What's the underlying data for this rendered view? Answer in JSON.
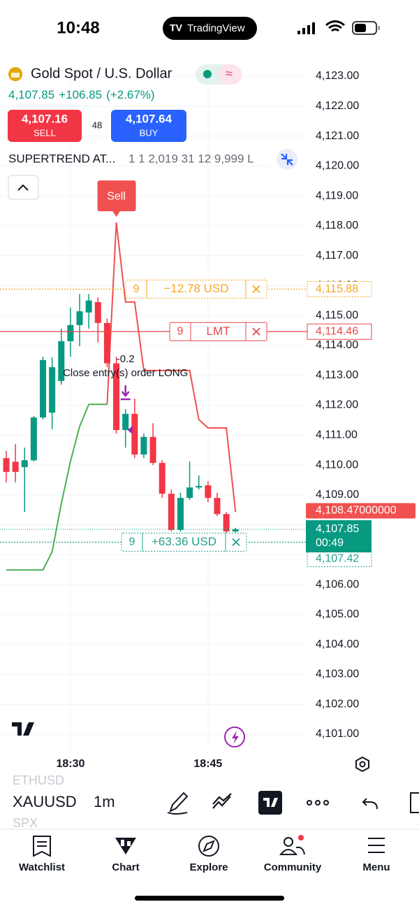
{
  "status_bar": {
    "time": "10:48",
    "app": "TradingView"
  },
  "symbol": {
    "name": "Gold Spot / U.S. Dollar",
    "price": "4,107.85",
    "change": "+106.85",
    "change_pct": "(+2.67%)"
  },
  "trade": {
    "sell_price": "4,107.16",
    "sell": "SELL",
    "spread": 48,
    "buy_price": "4,107.64",
    "buy": "BUY"
  },
  "indicator": {
    "name": "SUPERTREND AT...",
    "params": "1 1 2,019 31 12 9,999 L"
  },
  "chart": {
    "type": "candlestick",
    "categories": [
      null,
      null,
      null,
      null,
      null,
      null,
      null,
      "18:30",
      null,
      null,
      null,
      null,
      null,
      null,
      null,
      null,
      null,
      null,
      null,
      null,
      null,
      null,
      "18:45",
      null,
      null,
      null
    ],
    "open": [
      4110.23,
      4110.11,
      4109.93,
      4110.16,
      4111.59,
      4111.75,
      4112.81,
      4114.14,
      4114.68,
      4115.1,
      4115.45,
      4114.75,
      4113.4,
      4111.17,
      4111.71,
      4110.35,
      4110.94,
      4110.07,
      4109.04,
      4107.83,
      4108.9,
      4109.25,
      4109.32,
      4108.9,
      4108.36,
      4107.78
    ],
    "high": [
      4110.47,
      4110.7,
      4110.58,
      4111.64,
      4113.62,
      4113.6,
      4114.56,
      4115.26,
      4115.72,
      4115.72,
      4115.6,
      4114.9,
      4113.62,
      4111.87,
      4112.22,
      4111.05,
      4111.4,
      4110.16,
      4109.18,
      4109.07,
      4110.12,
      4109.65,
      4109.46,
      4109.07,
      4108.43,
      4107.9
    ],
    "low": [
      4109.42,
      4109.42,
      4108.43,
      4110.12,
      4111.52,
      4111.2,
      4112.69,
      4113.62,
      4113.97,
      4114.56,
      4114.1,
      4113.27,
      4111.05,
      4110.58,
      4110.23,
      4110.23,
      4110.0,
      4108.9,
      4107.78,
      4107.78,
      4108.83,
      4109.18,
      4108.76,
      4108.29,
      4107.73,
      4107.75
    ],
    "close": [
      4109.77,
      4109.77,
      4110.16,
      4111.59,
      4113.51,
      4113.27,
      4114.14,
      4114.68,
      4115.14,
      4115.5,
      4114.75,
      4113.4,
      4111.17,
      4111.71,
      4110.35,
      4110.94,
      4110.07,
      4109.04,
      4107.83,
      4108.9,
      4109.25,
      4109.3,
      4108.9,
      4108.36,
      4107.78,
      4107.85
    ],
    "up_color": "#089981",
    "down_color": "#f23645",
    "supertrend_up": {
      "color": "#4caf50",
      "values": [
        4106.49,
        4106.49,
        4106.49,
        4106.49,
        4106.49,
        4107.1,
        4108.71,
        4110.12,
        4111.29,
        4112.03,
        4112.03,
        4112.03,
        null,
        null,
        null,
        null,
        null,
        null,
        null,
        null,
        null,
        null,
        null,
        null,
        null,
        null
      ]
    },
    "supertrend_down": {
      "color": "#f0504f",
      "values": [
        null,
        null,
        null,
        null,
        null,
        null,
        null,
        null,
        null,
        null,
        null,
        null,
        4118.11,
        4115.45,
        4115.45,
        4113.16,
        4113.16,
        4113.16,
        4113.16,
        4113.16,
        4113.16,
        4111.52,
        4111.24,
        4111.24,
        4111.24,
        4108.43
      ]
    },
    "ylim": [
      4100.5,
      4123.5
    ],
    "yticks": [
      {
        "value": 4101,
        "label": "4,101.00"
      },
      {
        "value": 4102,
        "label": "4,102.00"
      },
      {
        "value": 4103,
        "label": "4,103.00"
      },
      {
        "value": 4104,
        "label": "4,104.00"
      },
      {
        "value": 4105,
        "label": "4,105.00"
      },
      {
        "value": 4106,
        "label": "4,106.00"
      },
      {
        "value": 4107,
        "label": "4,107.00"
      },
      {
        "value": 4108,
        "label": "4,108.00"
      },
      {
        "value": 4109,
        "label": "4,109.00"
      },
      {
        "value": 4110,
        "label": "4,110.00"
      },
      {
        "value": 4111,
        "label": "4,111.00"
      },
      {
        "value": 4112,
        "label": "4,112.00"
      },
      {
        "value": 4113,
        "label": "4,113.00"
      },
      {
        "value": 4114,
        "label": "4,114.00"
      },
      {
        "value": 4115,
        "label": "4,115.00"
      },
      {
        "value": 4116,
        "label": "4,116.00"
      },
      {
        "value": 4117,
        "label": "4,117.00"
      },
      {
        "value": 4118,
        "label": "4,118.00"
      },
      {
        "value": 4119,
        "label": "4,119.00"
      },
      {
        "value": 4120,
        "label": "4,120.00"
      },
      {
        "value": 4121,
        "label": "4,121.00"
      },
      {
        "value": 4122,
        "label": "4,122.00"
      },
      {
        "value": 4123,
        "label": "4,123.00"
      }
    ],
    "grid": true,
    "signal": "Sell",
    "annotations": [
      "-0.2",
      "Close entry(s) order LONG"
    ],
    "orders": [
      {
        "qty": 9,
        "text": "−12.78 USD",
        "price": {
          "value": 4115.88,
          "label": "4,115.88"
        },
        "color": "#f5a623",
        "style": "dotted"
      },
      {
        "qty": 9,
        "text": "LMT",
        "price": {
          "value": 4114.46,
          "label": "4,114.46"
        },
        "color": "#e8474a",
        "style": "solid"
      },
      {
        "qty": 9,
        "text": "+63.36 USD",
        "price": {
          "value": 4107.42,
          "label": "4,107.42"
        },
        "color": "#22a08e",
        "style": "dotted"
      }
    ],
    "last_price": {
      "value": 4107.85,
      "label": "4,107.85",
      "countdown": "00:49",
      "color": "#089981"
    },
    "cursor_price": {
      "value": 4108.47,
      "label": "4,108.47000000",
      "color": "#f0504f"
    }
  },
  "toolbar": {
    "symbols": [
      "ETHUSD",
      "XAUUSD",
      "SPX"
    ],
    "interval": "1m"
  },
  "tabs": [
    "Watchlist",
    "Chart",
    "Explore",
    "Community",
    "Menu"
  ]
}
